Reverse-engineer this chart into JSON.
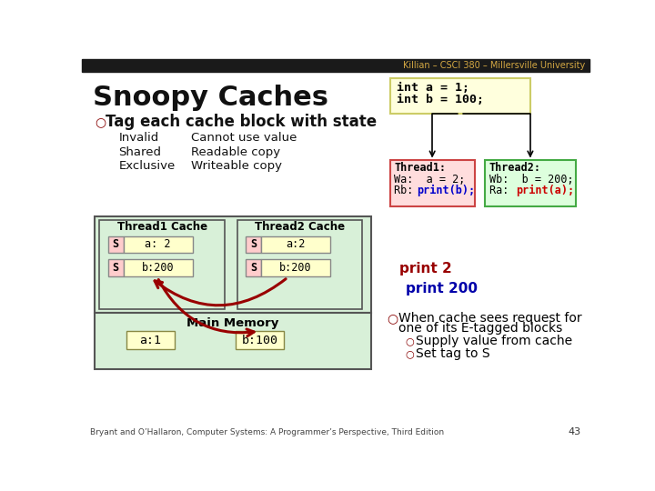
{
  "title_bar": "Killian – CSCI 380 – Millersville University",
  "title_bar_bg": "#1a1a1a",
  "title_bar_color": "#d4a843",
  "slide_title": "Snoopy Caches",
  "bullet_char": "○",
  "bullet_text": "Tag each cache block with state",
  "invalid_label": "Invalid",
  "invalid_desc": "Cannot use value",
  "shared_label": "Shared",
  "shared_desc": "Readable copy",
  "exclusive_label": "Exclusive",
  "exclusive_desc": "Writeable copy",
  "code_box_bg": "#ffffdd",
  "code_box_border": "#cccc66",
  "code_lines": [
    "int a = 1;",
    "int b = 100;"
  ],
  "thread1_bg": "#ffdddd",
  "thread1_border": "#cc6666",
  "thread1_title": "Thread1:",
  "thread2_bg": "#ddffdd",
  "thread2_border": "#66aa66",
  "thread2_title": "Thread2:",
  "thread1_colored": "print(b);",
  "thread1_colored_color": "#0000cc",
  "thread2_colored": "print(a);",
  "thread2_colored_color": "#cc0000",
  "cache_outer_bg": "#d8f0d8",
  "cache_inner_bg": "#d8f0d8",
  "t1cache_title": "Thread1 Cache",
  "t2cache_title": "Thread2 Cache",
  "cell_s_bg": "#ffcccc",
  "cell_val_bg": "#ffffcc",
  "t1_row1": [
    "S",
    "a: 2"
  ],
  "t1_row2": [
    "S",
    "b:200"
  ],
  "t2_row1": [
    "S",
    "a:2"
  ],
  "t2_row2": [
    "S",
    "b:200"
  ],
  "mem_bg": "#d8f0d8",
  "mem_title": "Main Memory",
  "mem_a": "a:1",
  "mem_b": "b:100",
  "print2_text": "print 2",
  "print2_color": "#990000",
  "print200_text": "print 200",
  "print200_color": "#0000aa",
  "right_bullet1": "When cache sees request for",
  "right_bullet1b": "one of its E-tagged blocks",
  "right_bullet2": "Supply value from cache",
  "right_bullet3": "Set tag to S",
  "footer": "Bryant and O’Hallaron, Computer Systems: A Programmer’s Perspective, Third Edition",
  "page_num": "43",
  "bg_color": "#ffffff",
  "arrow_color": "#990000"
}
